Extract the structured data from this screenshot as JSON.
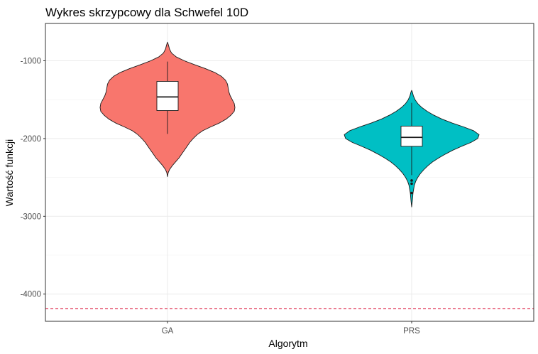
{
  "chart_data": {
    "type": "violin",
    "title": "Wykres skrzypcowy dla Schwefel 10D",
    "xlabel": "Algorytm",
    "ylabel": "Wartość funkcji",
    "categories": [
      "GA",
      "PRS"
    ],
    "ylim": [
      -4350,
      -520
    ],
    "yticks": [
      -1000,
      -2000,
      -3000,
      -4000
    ],
    "ytick_labels": [
      "-1000",
      "-2000",
      "-3000",
      "-4000"
    ],
    "grid": true,
    "reference_line": {
      "y": -4189.8,
      "color": "#dc143c",
      "style": "dashed"
    },
    "series": [
      {
        "category": "GA",
        "color": "#F8766D",
        "min": -2490,
        "max": -760,
        "q1": -1640,
        "median": -1465,
        "q3": -1265,
        "whisker_low": -1940,
        "whisker_high": -1010,
        "outliers": [],
        "density": [
          [
            -2490,
            0.0
          ],
          [
            -2440,
            0.01
          ],
          [
            -2400,
            0.03
          ],
          [
            -2350,
            0.07
          ],
          [
            -2300,
            0.12
          ],
          [
            -2250,
            0.17
          ],
          [
            -2200,
            0.21
          ],
          [
            -2150,
            0.25
          ],
          [
            -2100,
            0.29
          ],
          [
            -2050,
            0.33
          ],
          [
            -2000,
            0.38
          ],
          [
            -1950,
            0.44
          ],
          [
            -1900,
            0.52
          ],
          [
            -1850,
            0.64
          ],
          [
            -1800,
            0.77
          ],
          [
            -1750,
            0.87
          ],
          [
            -1700,
            0.94
          ],
          [
            -1650,
            0.99
          ],
          [
            -1600,
            1.0
          ],
          [
            -1550,
            0.99
          ],
          [
            -1500,
            0.96
          ],
          [
            -1450,
            0.93
          ],
          [
            -1400,
            0.91
          ],
          [
            -1350,
            0.9
          ],
          [
            -1300,
            0.89
          ],
          [
            -1250,
            0.86
          ],
          [
            -1200,
            0.8
          ],
          [
            -1150,
            0.7
          ],
          [
            -1100,
            0.56
          ],
          [
            -1050,
            0.4
          ],
          [
            -1000,
            0.25
          ],
          [
            -950,
            0.13
          ],
          [
            -900,
            0.06
          ],
          [
            -850,
            0.03
          ],
          [
            -800,
            0.015
          ],
          [
            -760,
            0.0
          ]
        ]
      },
      {
        "category": "PRS",
        "color": "#00BFC4",
        "min": -2880,
        "max": -1380,
        "q1": -2100,
        "median": -1985,
        "q3": -1840,
        "whisker_low": -2470,
        "whisker_high": -1540,
        "outliers": [
          -2540,
          -2580,
          -2700
        ],
        "density": [
          [
            -2880,
            0.0
          ],
          [
            -2840,
            0.005
          ],
          [
            -2800,
            0.01
          ],
          [
            -2750,
            0.015
          ],
          [
            -2700,
            0.02
          ],
          [
            -2650,
            0.03
          ],
          [
            -2600,
            0.04
          ],
          [
            -2550,
            0.06
          ],
          [
            -2500,
            0.09
          ],
          [
            -2450,
            0.13
          ],
          [
            -2400,
            0.18
          ],
          [
            -2350,
            0.24
          ],
          [
            -2300,
            0.31
          ],
          [
            -2250,
            0.4
          ],
          [
            -2200,
            0.5
          ],
          [
            -2150,
            0.61
          ],
          [
            -2100,
            0.74
          ],
          [
            -2050,
            0.88
          ],
          [
            -2000,
            0.98
          ],
          [
            -1950,
            1.0
          ],
          [
            -1900,
            0.92
          ],
          [
            -1850,
            0.77
          ],
          [
            -1800,
            0.6
          ],
          [
            -1750,
            0.45
          ],
          [
            -1700,
            0.33
          ],
          [
            -1650,
            0.23
          ],
          [
            -1600,
            0.15
          ],
          [
            -1550,
            0.09
          ],
          [
            -1500,
            0.05
          ],
          [
            -1450,
            0.025
          ],
          [
            -1400,
            0.01
          ],
          [
            -1380,
            0.0
          ]
        ]
      }
    ]
  }
}
